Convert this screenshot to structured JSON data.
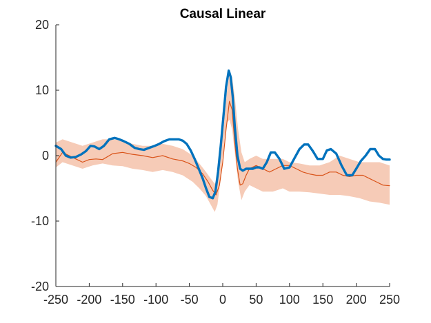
{
  "chart_data": {
    "type": "line",
    "title": "Causal Linear",
    "xlabel": "",
    "ylabel": "",
    "xlim": [
      -250,
      250
    ],
    "ylim": [
      -20,
      20
    ],
    "xticks": [
      -250,
      -200,
      -150,
      -100,
      -50,
      0,
      50,
      100,
      150,
      200,
      250
    ],
    "yticks": [
      -20,
      -10,
      0,
      10,
      20
    ],
    "xtick_labels": [
      "-250",
      "-200",
      "-150",
      "-100",
      "-50",
      "0",
      "50",
      "100",
      "150",
      "200",
      "250"
    ],
    "ytick_labels": [
      "-20",
      "-10",
      "0",
      "10",
      "20"
    ],
    "grid": false,
    "band": {
      "color": "#f6cbb7",
      "x": [
        -250,
        -240,
        -225,
        -210,
        -195,
        -180,
        -165,
        -150,
        -135,
        -120,
        -105,
        -90,
        -75,
        -60,
        -45,
        -35,
        -25,
        -18,
        -12,
        -8,
        -3,
        2,
        6,
        10,
        14,
        18,
        23,
        28,
        33,
        40,
        50,
        60,
        75,
        90,
        100,
        115,
        130,
        145,
        160,
        175,
        190,
        205,
        220,
        235,
        250
      ],
      "upper": [
        2.0,
        2.5,
        2.0,
        1.5,
        2.0,
        2.5,
        2.5,
        2.3,
        1.8,
        1.5,
        1.5,
        1.8,
        1.5,
        1.0,
        0.0,
        -1.2,
        -2.5,
        -3.5,
        -4.3,
        -3.5,
        0.0,
        5.0,
        9.5,
        12.5,
        12.0,
        9.0,
        4.0,
        0.5,
        -1.0,
        -0.5,
        0.0,
        -0.5,
        -0.5,
        -0.5,
        -1.0,
        -1.2,
        -1.5,
        -1.5,
        -1.0,
        0.0,
        -0.5,
        -1.0,
        -1.0,
        -1.0,
        -1.5
      ],
      "lower": [
        -1.8,
        -1.0,
        -1.5,
        -2.0,
        -1.5,
        -1.2,
        -1.5,
        -1.6,
        -2.0,
        -2.2,
        -2.5,
        -2.2,
        -2.5,
        -3.0,
        -4.0,
        -5.0,
        -6.2,
        -7.5,
        -8.6,
        -7.5,
        -3.5,
        2.0,
        5.0,
        5.5,
        4.0,
        0.5,
        -4.0,
        -6.8,
        -5.5,
        -4.5,
        -5.0,
        -5.5,
        -5.5,
        -5.0,
        -5.5,
        -5.5,
        -5.6,
        -5.8,
        -6.0,
        -6.0,
        -6.2,
        -6.5,
        -7.0,
        -7.2,
        -7.5
      ]
    },
    "series": [
      {
        "color": "#d95319",
        "width": 1.2,
        "x": [
          -250,
          -240,
          -230,
          -220,
          -210,
          -200,
          -190,
          -180,
          -165,
          -150,
          -135,
          -120,
          -105,
          -90,
          -75,
          -60,
          -50,
          -40,
          -30,
          -22,
          -15,
          -10,
          -5,
          0,
          5,
          10,
          14,
          18,
          22,
          26,
          30,
          35,
          40,
          50,
          60,
          70,
          80,
          90,
          100,
          110,
          120,
          130,
          140,
          150,
          160,
          170,
          180,
          190,
          200,
          210,
          220,
          230,
          240,
          250
        ],
        "y": [
          -1.0,
          0.5,
          0.0,
          -0.5,
          -1.0,
          -0.6,
          -0.5,
          -0.6,
          0.3,
          0.5,
          0.2,
          0.0,
          -0.3,
          0.0,
          -0.5,
          -0.8,
          -1.2,
          -1.8,
          -2.8,
          -4.0,
          -5.3,
          -6.0,
          -4.5,
          -1.0,
          4.0,
          8.3,
          7.0,
          2.0,
          -2.0,
          -4.5,
          -4.3,
          -3.0,
          -2.0,
          -1.5,
          -2.0,
          -2.5,
          -2.0,
          -1.5,
          -1.5,
          -2.0,
          -2.5,
          -2.8,
          -3.0,
          -3.0,
          -2.5,
          -2.5,
          -3.0,
          -3.2,
          -3.0,
          -3.0,
          -3.5,
          -4.0,
          -4.5,
          -4.6
        ]
      },
      {
        "color": "#0072bd",
        "width": 3.4,
        "x": [
          -250,
          -242,
          -235,
          -228,
          -220,
          -212,
          -205,
          -198,
          -192,
          -185,
          -178,
          -170,
          -162,
          -155,
          -148,
          -140,
          -132,
          -125,
          -118,
          -110,
          -102,
          -95,
          -88,
          -80,
          -73,
          -66,
          -60,
          -54,
          -48,
          -42,
          -36,
          -30,
          -25,
          -20,
          -15,
          -11,
          -7,
          -3,
          1,
          5,
          9,
          12,
          15,
          18,
          22,
          26,
          30,
          35,
          40,
          45,
          50,
          55,
          60,
          66,
          72,
          78,
          85,
          92,
          100,
          108,
          115,
          122,
          128,
          135,
          142,
          150,
          156,
          162,
          170,
          178,
          186,
          194,
          200,
          207,
          214,
          221,
          228,
          234,
          240,
          245,
          250
        ],
        "y": [
          1.5,
          1.0,
          0.0,
          -0.3,
          -0.2,
          0.2,
          0.7,
          1.5,
          1.4,
          1.0,
          1.5,
          2.5,
          2.7,
          2.5,
          2.2,
          1.8,
          1.2,
          1.0,
          0.9,
          1.2,
          1.5,
          1.8,
          2.2,
          2.5,
          2.5,
          2.5,
          2.3,
          1.8,
          0.8,
          -0.5,
          -2.0,
          -3.5,
          -5.0,
          -6.3,
          -6.5,
          -5.5,
          -2.5,
          1.5,
          6.0,
          10.5,
          13.0,
          12.0,
          9.0,
          4.5,
          0.0,
          -2.0,
          -2.3,
          -2.0,
          -2.0,
          -2.0,
          -1.8,
          -1.8,
          -2.0,
          -1.0,
          0.5,
          0.5,
          -0.5,
          -2.0,
          -1.8,
          -0.3,
          1.0,
          1.7,
          1.7,
          0.7,
          -0.5,
          -0.5,
          0.8,
          1.0,
          0.3,
          -1.5,
          -3.0,
          -3.0,
          -2.0,
          -0.8,
          0.0,
          1.0,
          1.0,
          0.0,
          -0.5,
          -0.6,
          -0.6
        ]
      }
    ]
  }
}
